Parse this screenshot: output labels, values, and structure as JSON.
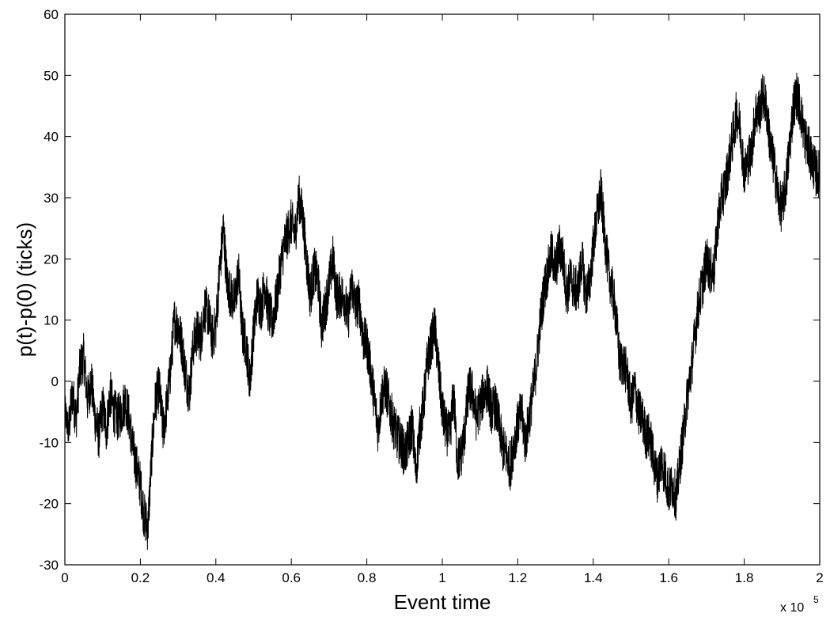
{
  "chart_data": {
    "type": "line",
    "title": "",
    "xlabel": "Event time",
    "ylabel": "p(t)-p(0) (ticks)",
    "x_multiplier_label": "x 10",
    "x_multiplier_exponent": "5",
    "xlim": [
      0,
      2
    ],
    "ylim": [
      -30,
      60
    ],
    "x_ticks": [
      "0",
      "0.2",
      "0.4",
      "0.6",
      "0.8",
      "1",
      "1.2",
      "1.4",
      "1.6",
      "1.8",
      "2"
    ],
    "y_ticks": [
      "-30",
      "-20",
      "-10",
      "0",
      "10",
      "20",
      "30",
      "40",
      "50",
      "60"
    ],
    "grid": false,
    "line_color": "#000000",
    "series": [
      {
        "x": [
          0,
          0.01,
          0.02,
          0.03,
          0.04,
          0.05,
          0.06,
          0.07,
          0.08,
          0.09,
          0.1,
          0.11,
          0.12,
          0.13,
          0.14,
          0.15,
          0.16,
          0.17,
          0.18,
          0.19,
          0.2,
          0.21,
          0.22,
          0.23,
          0.24,
          0.25,
          0.26,
          0.27,
          0.28,
          0.29,
          0.3,
          0.31,
          0.32,
          0.33,
          0.34,
          0.35,
          0.36,
          0.37,
          0.38,
          0.39,
          0.4,
          0.41,
          0.42,
          0.43,
          0.44,
          0.45,
          0.46,
          0.47,
          0.48,
          0.49,
          0.5,
          0.51,
          0.52,
          0.53,
          0.54,
          0.55,
          0.56,
          0.57,
          0.58,
          0.59,
          0.6,
          0.61,
          0.62,
          0.63,
          0.64,
          0.65,
          0.66,
          0.67,
          0.68,
          0.69,
          0.7,
          0.71,
          0.72,
          0.73,
          0.74,
          0.75,
          0.76,
          0.77,
          0.78,
          0.79,
          0.8,
          0.81,
          0.82,
          0.83,
          0.84,
          0.85,
          0.86,
          0.87,
          0.88,
          0.89,
          0.9,
          0.91,
          0.92,
          0.93,
          0.94,
          0.95,
          0.96,
          0.97,
          0.98,
          0.99,
          1.0,
          1.01,
          1.02,
          1.03,
          1.04,
          1.05,
          1.06,
          1.07,
          1.08,
          1.09,
          1.1,
          1.11,
          1.12,
          1.13,
          1.14,
          1.15,
          1.16,
          1.17,
          1.18,
          1.19,
          1.2,
          1.21,
          1.22,
          1.23,
          1.24,
          1.25,
          1.26,
          1.27,
          1.28,
          1.29,
          1.3,
          1.31,
          1.32,
          1.33,
          1.34,
          1.35,
          1.36,
          1.37,
          1.38,
          1.39,
          1.4,
          1.41,
          1.42,
          1.43,
          1.44,
          1.45,
          1.46,
          1.47,
          1.48,
          1.49,
          1.5,
          1.51,
          1.52,
          1.53,
          1.54,
          1.55,
          1.56,
          1.57,
          1.58,
          1.59,
          1.6,
          1.61,
          1.62,
          1.63,
          1.64,
          1.65,
          1.66,
          1.67,
          1.68,
          1.69,
          1.7,
          1.71,
          1.72,
          1.73,
          1.74,
          1.75,
          1.76,
          1.77,
          1.78,
          1.79,
          1.8,
          1.81,
          1.82,
          1.83,
          1.84,
          1.85,
          1.86,
          1.87,
          1.88,
          1.89,
          1.9,
          1.91,
          1.92,
          1.93,
          1.94,
          1.95,
          1.96,
          1.97,
          1.98,
          1.99,
          2.0
        ],
        "y": [
          -5,
          -8,
          -2,
          -6,
          2,
          4,
          -3,
          0,
          -6,
          -9,
          -4,
          -8,
          -2,
          -5,
          -6,
          -5,
          -3,
          -6,
          -11,
          -14,
          -17,
          -22,
          -24,
          -12,
          -3,
          -1,
          -8,
          -4,
          2,
          10,
          9,
          6,
          1,
          -2,
          6,
          8,
          7,
          12,
          11,
          7,
          9,
          18,
          25,
          16,
          14,
          13,
          18,
          8,
          6,
          0,
          8,
          14,
          12,
          16,
          11,
          10,
          13,
          18,
          22,
          24,
          26,
          24,
          30,
          27,
          20,
          14,
          18,
          17,
          9,
          12,
          16,
          20,
          14,
          14,
          14,
          10,
          16,
          12,
          13,
          7,
          6,
          2,
          -3,
          -8,
          -2,
          -1,
          -4,
          -7,
          -9,
          -10,
          -12,
          -10,
          -7,
          -15,
          -8,
          -4,
          3,
          6,
          9,
          2,
          -5,
          -8,
          -9,
          -2,
          -13,
          -12,
          -8,
          -1,
          -2,
          -6,
          -4,
          -2,
          -1,
          -5,
          -4,
          -7,
          -11,
          -12,
          -14,
          -10,
          -7,
          -5,
          -10,
          -6,
          -2,
          3,
          10,
          15,
          18,
          21,
          18,
          22,
          20,
          14,
          17,
          15,
          15,
          20,
          14,
          16,
          22,
          27,
          31,
          24,
          18,
          15,
          11,
          3,
          3,
          1,
          -4,
          -1,
          -5,
          -6,
          -9,
          -9,
          -13,
          -16,
          -13,
          -15,
          -18,
          -17,
          -19,
          -13,
          -8,
          -2,
          2,
          8,
          13,
          16,
          20,
          18,
          18,
          26,
          30,
          32,
          36,
          40,
          44,
          41,
          34,
          36,
          38,
          44,
          44,
          47,
          44,
          38,
          35,
          30,
          28,
          32,
          38,
          45,
          47,
          44,
          40,
          38,
          36,
          34,
          34
        ],
        "y_noise_amplitude": [
          3,
          4,
          4,
          4,
          4,
          4,
          4,
          4,
          4,
          4,
          4,
          4,
          4,
          4,
          4,
          4,
          4,
          4,
          4,
          4,
          4,
          4,
          4,
          4,
          4,
          4,
          4,
          4,
          4,
          4,
          4,
          4,
          4,
          4,
          4,
          4,
          4,
          4,
          4,
          4,
          4,
          4,
          4,
          4,
          4,
          4,
          4,
          4,
          4,
          4,
          4,
          4,
          4,
          4,
          4,
          4,
          4,
          4,
          4,
          4,
          4,
          4,
          4,
          4,
          4,
          4,
          4,
          4,
          4,
          4,
          4,
          4,
          4,
          4,
          4,
          4,
          4,
          4,
          4,
          4,
          4,
          4,
          4,
          4,
          4,
          4,
          4,
          4,
          4,
          4,
          4,
          4,
          4,
          4,
          4,
          4,
          4,
          4,
          4,
          4,
          4,
          4,
          4,
          4,
          4,
          4,
          4,
          4,
          4,
          4,
          4,
          4,
          4,
          4,
          4,
          4,
          4,
          4,
          4,
          4,
          4,
          4,
          4,
          4,
          4,
          4,
          4,
          4,
          4,
          4,
          4,
          4,
          4,
          4,
          4,
          4,
          4,
          4,
          4,
          4,
          4,
          4,
          4,
          4,
          4,
          4,
          4,
          4,
          4,
          4,
          4,
          4,
          4,
          4,
          4,
          4,
          4,
          4,
          4,
          4,
          4,
          4,
          4,
          4,
          4,
          4,
          4,
          4,
          4,
          4,
          4,
          4,
          4,
          4,
          4,
          4,
          4,
          4,
          4,
          4,
          4,
          4,
          4,
          4,
          4,
          4,
          4,
          4,
          4,
          4,
          4,
          4,
          4,
          4,
          4,
          4,
          4,
          4,
          4,
          4,
          4
        ]
      }
    ]
  }
}
